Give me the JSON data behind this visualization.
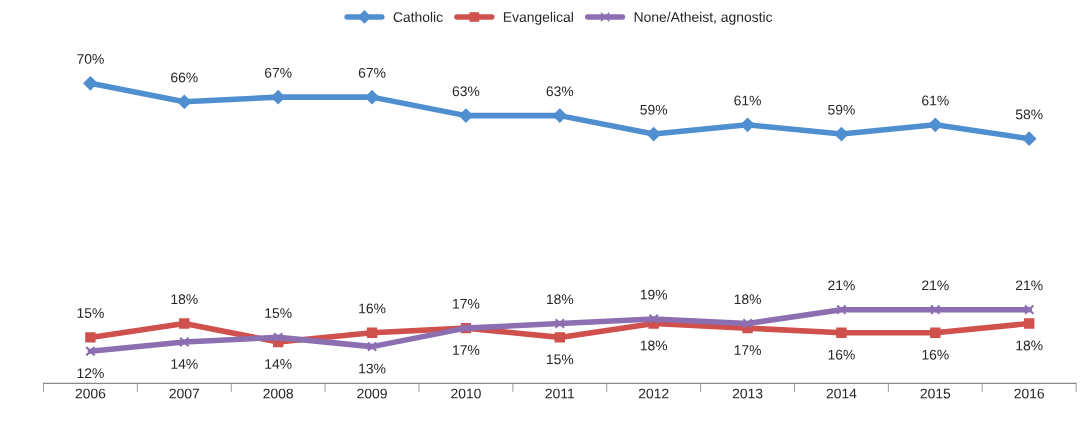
{
  "chart_data": {
    "type": "line",
    "categories": [
      "2006",
      "2007",
      "2008",
      "2009",
      "2010",
      "2011",
      "2012",
      "2013",
      "2014",
      "2015",
      "2016"
    ],
    "series": [
      {
        "name": "Catholic",
        "color": "#4f8fd0",
        "marker": "diamond",
        "values": [
          70,
          66,
          67,
          67,
          63,
          63,
          59,
          61,
          59,
          61,
          58
        ],
        "value_labels": [
          "70%",
          "66%",
          "67%",
          "67%",
          "63%",
          "63%",
          "59%",
          "61%",
          "59%",
          "61%",
          "58%"
        ]
      },
      {
        "name": "Evangelical",
        "color": "#cf504c",
        "marker": "square",
        "values": [
          15,
          18,
          14,
          16,
          17,
          15,
          18,
          17,
          16,
          16,
          18
        ],
        "value_labels": [
          "15%",
          "18%",
          "14%",
          "16%",
          "17%",
          "15%",
          "18%",
          "17%",
          "16%",
          "16%",
          "18%"
        ]
      },
      {
        "name": "None/Atheist, agnostic",
        "color": "#8c6fb0",
        "marker": "cross",
        "values": [
          12,
          14,
          15,
          13,
          17,
          18,
          19,
          18,
          21,
          21,
          21
        ],
        "value_labels": [
          "12%",
          "14%",
          "15%",
          "13%",
          "17%",
          "18%",
          "19%",
          "18%",
          "21%",
          "21%",
          "21%"
        ]
      }
    ],
    "legend": "top",
    "tick_labels": "x",
    "line_style": "solid"
  }
}
